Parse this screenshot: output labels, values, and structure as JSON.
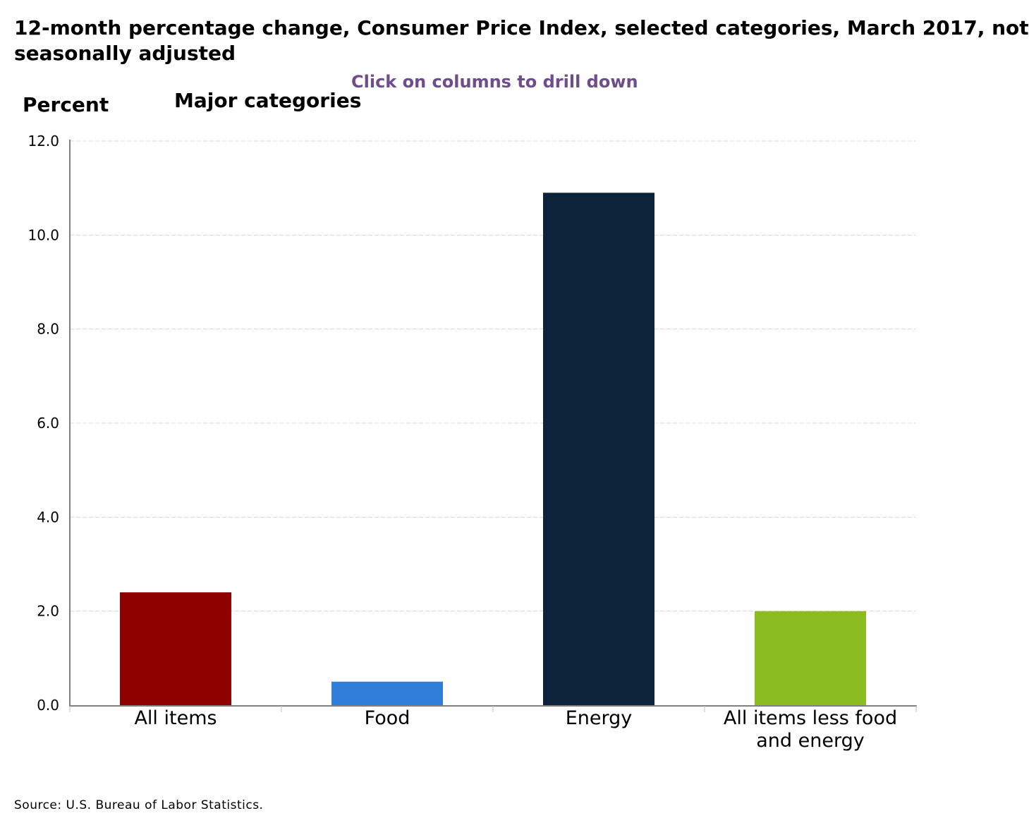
{
  "chart_data": {
    "type": "bar",
    "title_lines": [
      "12-month percentage change, Consumer Price Index, selected categories, March 2017, not",
      "seasonally adjusted"
    ],
    "subtitle": "Major categories",
    "ylabel": "Percent",
    "drill_hint": "Click on columns to drill down",
    "categories": [
      "All items",
      "Food",
      "Energy",
      "All items less food and energy"
    ],
    "category_label_lines": [
      [
        "All items"
      ],
      [
        "Food"
      ],
      [
        "Energy"
      ],
      [
        "All items less food",
        "and energy"
      ]
    ],
    "values": [
      2.4,
      0.5,
      10.9,
      2.0
    ],
    "colors": [
      "#8f0000",
      "#2f7ed8",
      "#0d233a",
      "#8bbc21"
    ],
    "ylim": [
      0,
      12
    ],
    "yticks": [
      0,
      2,
      4,
      6,
      8,
      10,
      12
    ],
    "ytick_labels": [
      "0.0",
      "2.0",
      "4.0",
      "6.0",
      "8.0",
      "10.0",
      "12.0"
    ],
    "grid": true,
    "source": "Source: U.S. Bureau of Labor Statistics."
  }
}
